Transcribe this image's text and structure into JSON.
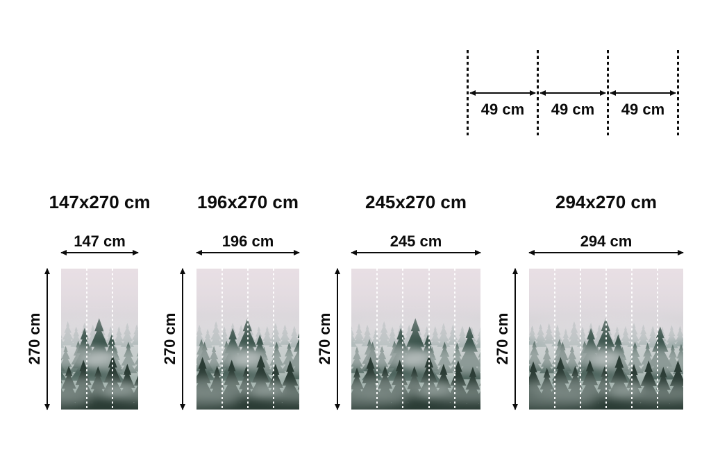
{
  "panel_guide": {
    "labels": [
      "49 cm",
      "49 cm",
      "49 cm"
    ]
  },
  "sizes": [
    {
      "title": "147x270 cm",
      "width_label": "147 cm",
      "height_label": "270 cm",
      "panels": 3
    },
    {
      "title": "196x270 cm",
      "width_label": "196 cm",
      "height_label": "270 cm",
      "panels": 4
    },
    {
      "title": "245x270 cm",
      "width_label": "245 cm",
      "height_label": "270 cm",
      "panels": 5
    },
    {
      "title": "294x270 cm",
      "width_label": "294 cm",
      "height_label": "270 cm",
      "panels": 6
    }
  ],
  "artwork": {
    "description": "Foggy mountain forest wall mural preview",
    "colors": {
      "background": "#ffffff",
      "dimension_lines": "#0b0b0b",
      "panel_seam": "#ffffff",
      "fog_top": "#e7dee3",
      "fog_mid": "#ccd3d2",
      "trees_back": "#64807b",
      "trees_mid": "#435c54",
      "trees_front": "#2b3c35"
    }
  }
}
